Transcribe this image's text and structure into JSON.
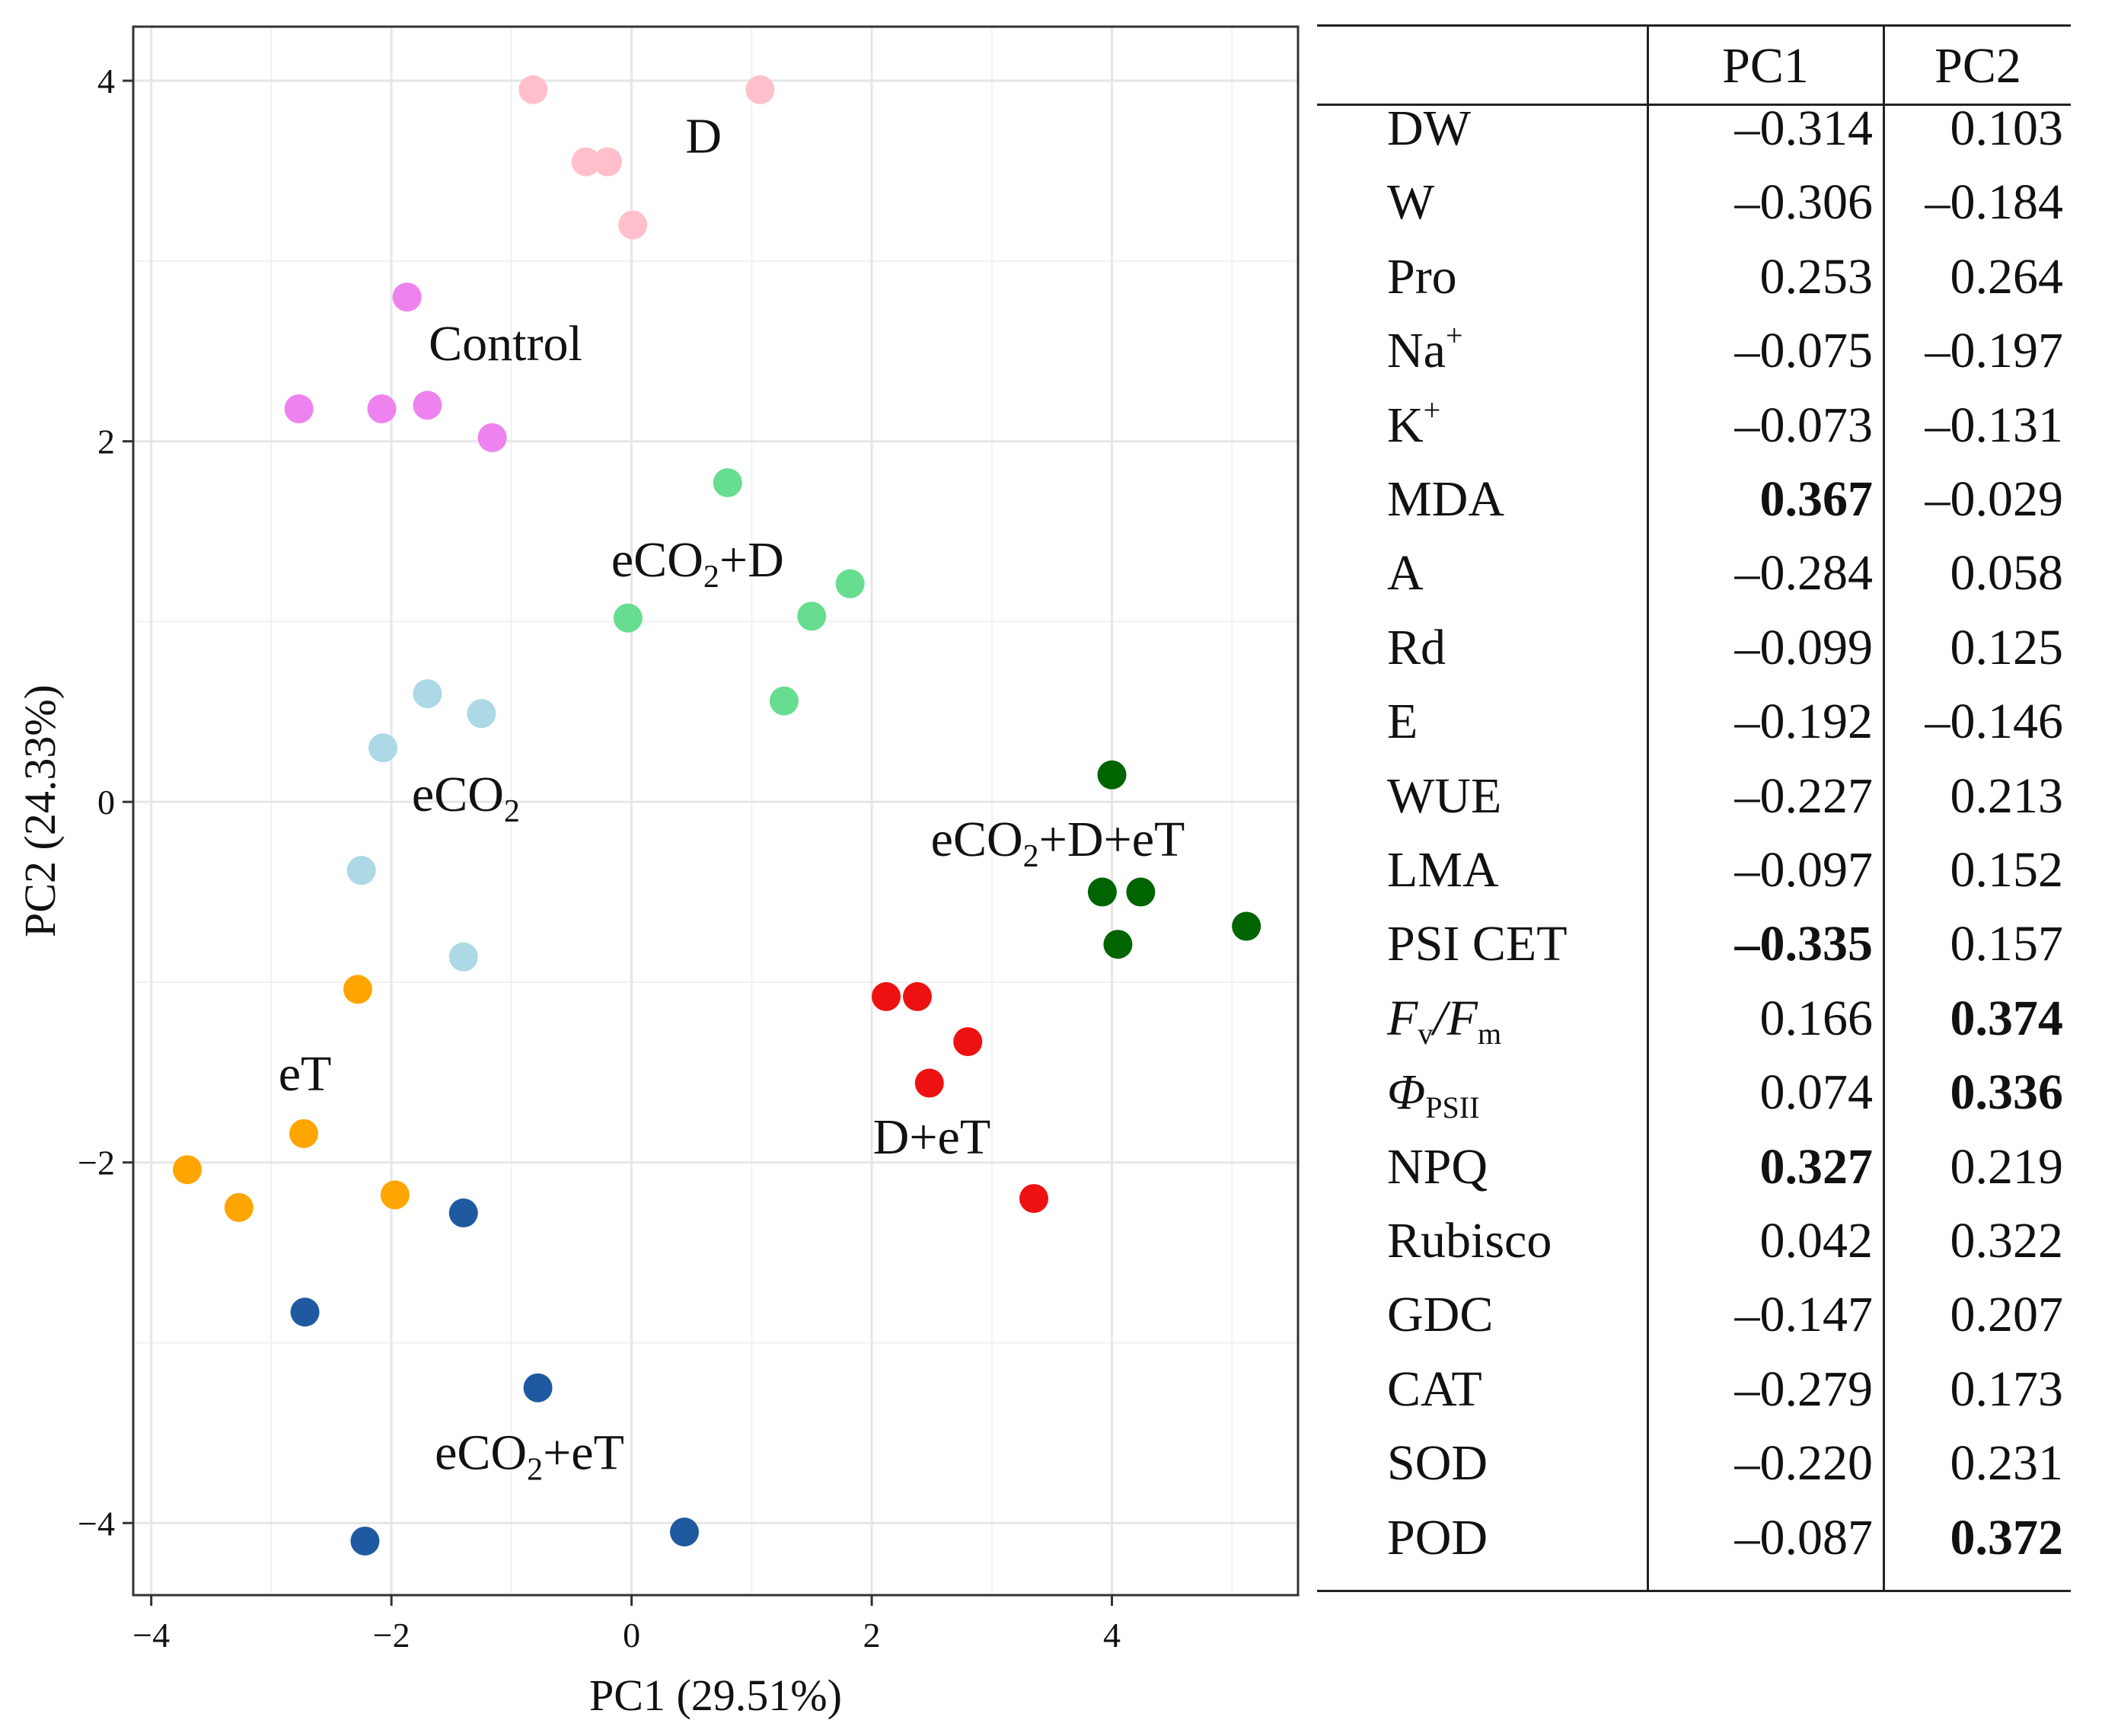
{
  "chart_data": {
    "type": "scatter",
    "xlabel": "PC1 (29.51%)",
    "ylabel": "PC2 (24.33%)",
    "xlim": [
      -4.15,
      5.55
    ],
    "ylim": [
      -4.4,
      4.3
    ],
    "xticks": [
      -4,
      -2,
      0,
      2,
      4
    ],
    "yticks": [
      -4,
      -2,
      0,
      2,
      4
    ],
    "xtick_labels": [
      "−4",
      "−2",
      "0",
      "2",
      "4"
    ],
    "ytick_labels": [
      "−4",
      "−2",
      "0",
      "2",
      "4"
    ],
    "grid": true,
    "series": [
      {
        "name": "D",
        "color": "#ffc0cb",
        "label_main": "D",
        "label_sub": "",
        "label_rest": "",
        "label_at": [
          0.6,
          3.6
        ],
        "x": [
          -0.82,
          1.07,
          -0.38,
          -0.2,
          0.01
        ],
        "y": [
          3.95,
          3.95,
          3.55,
          3.55,
          3.2
        ]
      },
      {
        "name": "Control",
        "color": "#ee82ee",
        "label_main": "Control",
        "label_sub": "",
        "label_rest": "",
        "label_at": [
          -1.05,
          2.45
        ],
        "x": [
          -1.87,
          -2.77,
          -2.08,
          -1.7,
          -1.16
        ],
        "y": [
          2.8,
          2.18,
          2.18,
          2.2,
          2.02
        ]
      },
      {
        "name": "eCO2+D",
        "color": "#66dd8f",
        "label_main": "eCO",
        "label_sub": "2",
        "label_rest": "+D",
        "label_at": [
          0.55,
          1.25
        ],
        "x": [
          0.8,
          1.82,
          -0.03,
          1.5,
          1.27
        ],
        "y": [
          1.77,
          1.21,
          1.02,
          1.03,
          0.56
        ]
      },
      {
        "name": "eCO2",
        "color": "#add8e6",
        "label_main": "eCO",
        "label_sub": "2",
        "label_rest": "",
        "label_at": [
          -1.38,
          -0.05
        ],
        "x": [
          -1.7,
          -1.25,
          -2.07,
          -2.25,
          -1.4
        ],
        "y": [
          0.6,
          0.49,
          0.3,
          -0.38,
          -0.86
        ]
      },
      {
        "name": "eCO2+D+eT",
        "color": "#006400",
        "label_main": "eCO",
        "label_sub": "2",
        "label_rest": "+D+eT",
        "label_at": [
          3.55,
          -0.3
        ],
        "x": [
          4.0,
          3.92,
          4.24,
          4.05,
          5.12
        ],
        "y": [
          0.15,
          -0.5,
          -0.5,
          -0.79,
          -0.69
        ]
      },
      {
        "name": "D+eT",
        "color": "#ee1111",
        "label_main": "D+eT",
        "label_sub": "",
        "label_rest": "",
        "label_at": [
          2.5,
          -1.95
        ],
        "x": [
          2.12,
          2.38,
          2.8,
          2.48,
          3.35
        ],
        "y": [
          -1.08,
          -1.08,
          -1.33,
          -1.56,
          -2.2
        ]
      },
      {
        "name": "eT",
        "color": "#ffa500",
        "label_main": "eT",
        "label_sub": "",
        "label_rest": "",
        "label_at": [
          -2.72,
          -1.6
        ],
        "x": [
          -2.28,
          -2.73,
          -3.7,
          -3.27,
          -1.97
        ],
        "y": [
          -1.04,
          -1.84,
          -2.04,
          -2.25,
          -2.18
        ]
      },
      {
        "name": "eCO2+eT",
        "color": "#1f5aa0",
        "label_main": "eCO",
        "label_sub": "2",
        "label_rest": "+eT",
        "label_at": [
          -0.85,
          -3.7
        ],
        "x": [
          -1.4,
          -2.72,
          -0.78,
          -2.22,
          0.44
        ],
        "y": [
          -2.28,
          -2.83,
          -3.25,
          -4.1,
          -4.05
        ]
      }
    ]
  },
  "table": {
    "col_pc1": "PC1",
    "col_pc2": "PC2",
    "rows": [
      {
        "var": "DW",
        "pc1": "–0.314",
        "pc2": "0.103",
        "b1": false,
        "b2": false
      },
      {
        "var": "W",
        "pc1": "–0.306",
        "pc2": "–0.184",
        "b1": false,
        "b2": false
      },
      {
        "var": "Pro",
        "pc1": "0.253",
        "pc2": "0.264",
        "b1": false,
        "b2": false
      },
      {
        "var": "Na",
        "sup": "+",
        "pc1": "–0.075",
        "pc2": "–0.197",
        "b1": false,
        "b2": false
      },
      {
        "var": "K",
        "sup": "+",
        "pc1": "–0.073",
        "pc2": "–0.131",
        "b1": false,
        "b2": false
      },
      {
        "var": "MDA",
        "pc1": "0.367",
        "pc2": "–0.029",
        "b1": true,
        "b2": false
      },
      {
        "var": "A",
        "pc1": "–0.284",
        "pc2": "0.058",
        "b1": false,
        "b2": false
      },
      {
        "var": "Rd",
        "pc1": "–0.099",
        "pc2": "0.125",
        "b1": false,
        "b2": false
      },
      {
        "var": "E",
        "pc1": "–0.192",
        "pc2": "–0.146",
        "b1": false,
        "b2": false
      },
      {
        "var": "WUE",
        "pc1": "–0.227",
        "pc2": "0.213",
        "b1": false,
        "b2": false
      },
      {
        "var": "LMA",
        "pc1": "–0.097",
        "pc2": "0.152",
        "b1": false,
        "b2": false
      },
      {
        "var": "PSI CET",
        "pc1": "–0.335",
        "pc2": "0.157",
        "b1": true,
        "b2": false
      },
      {
        "var": "F",
        "sub": "v",
        "var2": "/F",
        "sub2": "m",
        "italic": true,
        "pc1": "0.166",
        "pc2": "0.374",
        "b1": false,
        "b2": true
      },
      {
        "var": "Φ",
        "sub": "PSII",
        "italic": true,
        "pc1": "0.074",
        "pc2": "0.336",
        "b1": false,
        "b2": true
      },
      {
        "var": "NPQ",
        "pc1": "0.327",
        "pc2": "0.219",
        "b1": true,
        "b2": false
      },
      {
        "var": "Rubisco",
        "pc1": "0.042",
        "pc2": "0.322",
        "b1": false,
        "b2": false
      },
      {
        "var": "GDC",
        "pc1": "–0.147",
        "pc2": "0.207",
        "b1": false,
        "b2": false
      },
      {
        "var": "CAT",
        "pc1": "–0.279",
        "pc2": "0.173",
        "b1": false,
        "b2": false
      },
      {
        "var": "SOD",
        "pc1": "–0.220",
        "pc2": "0.231",
        "b1": false,
        "b2": false
      },
      {
        "var": "POD",
        "pc1": "–0.087",
        "pc2": "0.372",
        "b1": false,
        "b2": true
      }
    ]
  }
}
